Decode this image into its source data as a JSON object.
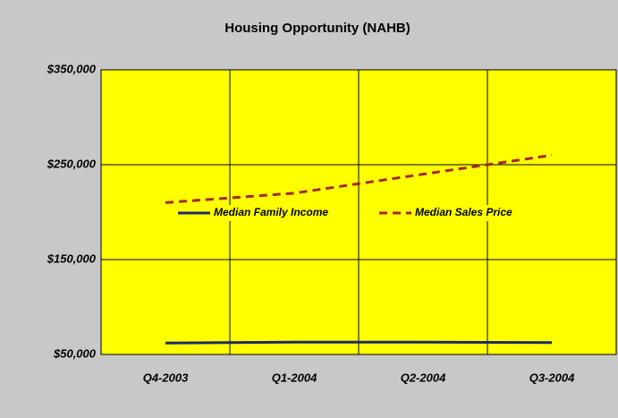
{
  "chart_data": {
    "type": "line",
    "title": "Housing Opportunity (NAHB)",
    "categories": [
      "Q4-2003",
      "Q1-2004",
      "Q2-2004",
      "Q3-2004"
    ],
    "series": [
      {
        "name": "Median Family Income",
        "color": "#1f2a6b",
        "dash": false,
        "values": [
          62000,
          63000,
          63000,
          62500
        ]
      },
      {
        "name": "Median Sales Price",
        "color": "#a52a2a",
        "dash": true,
        "values": [
          210000,
          220000,
          240000,
          260000
        ]
      }
    ],
    "ylim": [
      50000,
      350000
    ],
    "yticks": [
      {
        "value": 50000,
        "label": "$50,000"
      },
      {
        "value": 150000,
        "label": "$150,000"
      },
      {
        "value": 250000,
        "label": "$250,000"
      },
      {
        "value": 350000,
        "label": "$350,000"
      }
    ],
    "grid": true,
    "plot_color": "#ffff00",
    "background": "#c8c8c8"
  }
}
